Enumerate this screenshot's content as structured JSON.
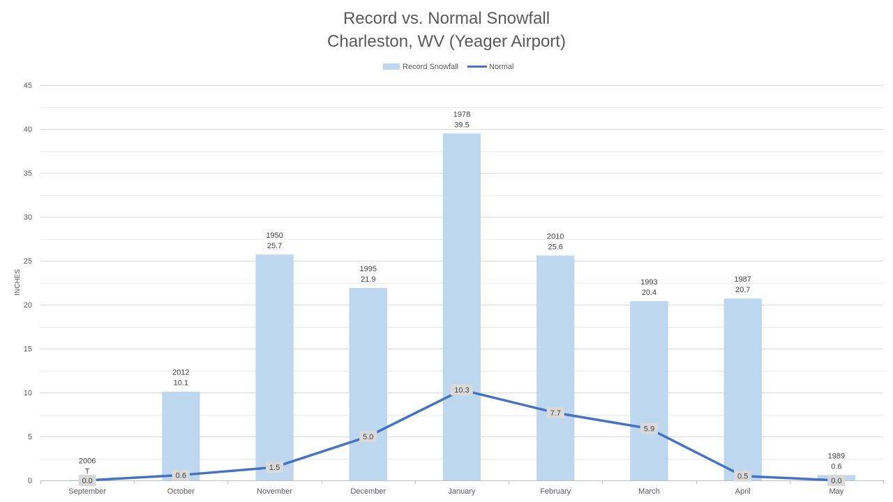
{
  "chart_data": {
    "type": "bar",
    "title_line1": "Record vs. Normal Snowfall",
    "title_line2": "Charleston, WV (Yeager Airport)",
    "ylabel": "INCHES",
    "xlabel": "",
    "ylim": [
      0,
      45
    ],
    "ytick_step": 5,
    "y_ticks": [
      "0",
      "5",
      "10",
      "15",
      "20",
      "25",
      "30",
      "35",
      "40",
      "45"
    ],
    "grid": true,
    "legend_position": "top-center",
    "categories": [
      "September",
      "October",
      "November",
      "December",
      "January",
      "February",
      "March",
      "April",
      "May"
    ],
    "series": [
      {
        "name": "Record Snowfall",
        "type": "bar",
        "color": "#BDD7EE",
        "values": [
          0.05,
          10.1,
          25.7,
          21.9,
          39.5,
          25.6,
          20.4,
          20.7,
          0.6
        ],
        "value_labels": [
          "T",
          "10.1",
          "25.7",
          "21.9",
          "39.5",
          "25.6",
          "20.4",
          "20.7",
          "0.6"
        ],
        "years": [
          "2006",
          "2012",
          "1950",
          "1995",
          "1978",
          "2010",
          "1993",
          "1987",
          "1989"
        ]
      },
      {
        "name": "Normal",
        "type": "line",
        "color": "#4472C4",
        "values": [
          0.0,
          0.6,
          1.5,
          5.0,
          10.3,
          7.7,
          5.9,
          0.5,
          0.0
        ],
        "value_labels": [
          "0.0",
          "0.6",
          "1.5",
          "5.0",
          "10.3",
          "7.7",
          "5.9",
          "0.5",
          "0.0"
        ]
      }
    ]
  }
}
